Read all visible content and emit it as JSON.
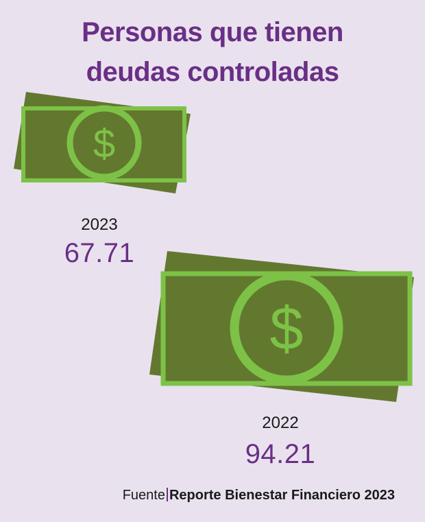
{
  "title_line1": "Personas que tienen",
  "title_line2": "deudas controladas",
  "chart_data": {
    "type": "pictograph",
    "title": "Personas que tienen deudas controladas",
    "categories": [
      "2023",
      "2022"
    ],
    "values": [
      67.71,
      94.21
    ],
    "value_labels": [
      "67.71",
      "94.21"
    ],
    "colors": {
      "bill_back": "#63782f",
      "bill_front": "#63782f",
      "bill_border": "#7dc247",
      "title": "#6a2f86",
      "value": "#6a2f86",
      "background": "#e9e2ee"
    },
    "icon": "dollar-bill-icon"
  },
  "source": {
    "prefix": "Fuente",
    "reference": "Reporte Bienestar Financiero 2023"
  }
}
